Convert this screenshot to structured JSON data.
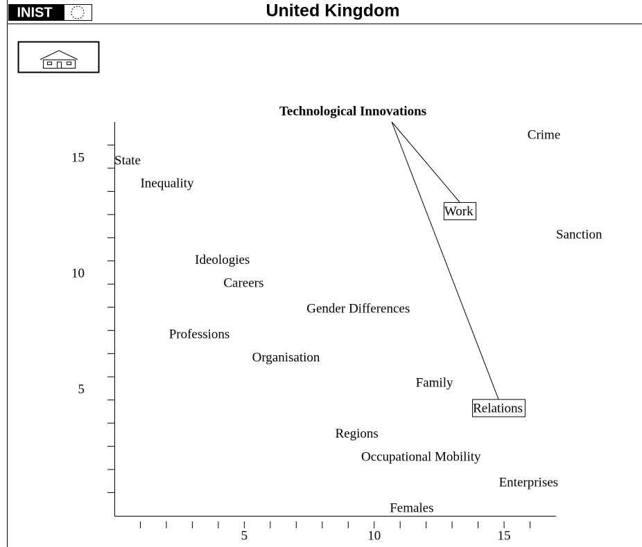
{
  "app": {
    "logo": "INIST"
  },
  "chart_data": {
    "type": "scatter",
    "title": "United Kingdom",
    "focus": "Technological Innovations",
    "labels": [
      "State",
      "Inequality",
      "Ideologies",
      "Careers",
      "Gender Differences",
      "Professions",
      "Organisation",
      "Family",
      "Relations",
      "Regions",
      "Occupational Mobility",
      "Enterprises",
      "Females",
      "Crime",
      "Work",
      "Sanction"
    ],
    "x": [
      0,
      1.0,
      3.1,
      4.2,
      7.4,
      2.1,
      5.3,
      11.6,
      13.8,
      8.5,
      9.5,
      14.8,
      10.6,
      15.9,
      12.7,
      17.0
    ],
    "y": [
      15.3,
      14.3,
      11.0,
      10.0,
      8.9,
      7.8,
      6.8,
      5.7,
      4.6,
      3.5,
      2.5,
      1.4,
      0.3,
      16.4,
      13.1,
      12.1
    ],
    "boxed": [
      false,
      false,
      false,
      false,
      false,
      false,
      false,
      false,
      true,
      false,
      false,
      false,
      false,
      false,
      true,
      false
    ],
    "xlim": [
      0,
      17
    ],
    "ylim": [
      0,
      17
    ],
    "xticks": [
      5,
      10,
      15
    ],
    "yticks": [
      5,
      10,
      15
    ],
    "minor_xticks": [
      1,
      2,
      3,
      4,
      6,
      7,
      8,
      9,
      11,
      12,
      13,
      14,
      16
    ],
    "minor_yticks": [
      1,
      2,
      3,
      4,
      6,
      7,
      8,
      9,
      11,
      12,
      13,
      14,
      16
    ]
  }
}
